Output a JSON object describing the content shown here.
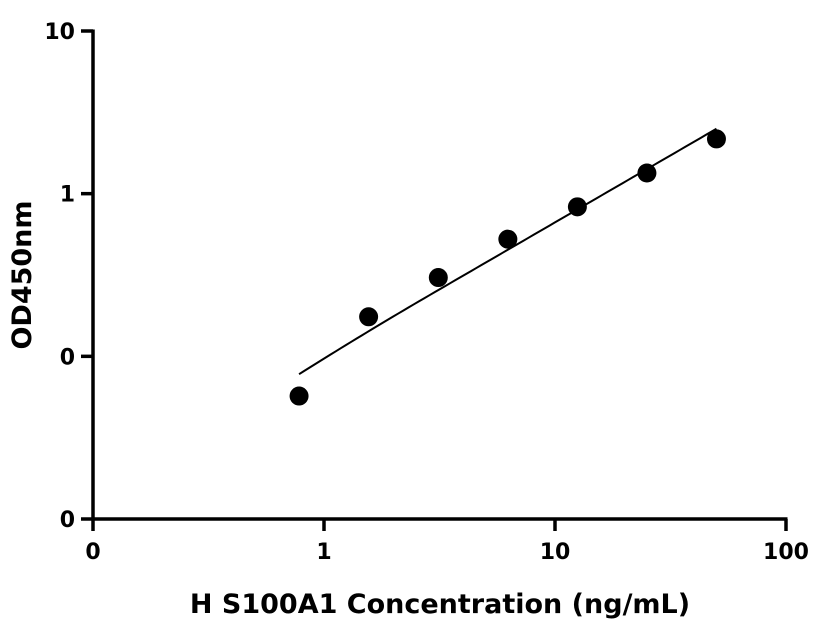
{
  "chart_data": {
    "type": "scatter",
    "title": "",
    "xlabel": "H S100A1 Concentration (ng/mL)",
    "ylabel": "OD450nm",
    "x_scale": "log",
    "y_scale": "log",
    "xlim": [
      0.1,
      100
    ],
    "ylim": [
      0.01,
      10
    ],
    "x_ticks": [
      {
        "value": 0.1,
        "label": "0"
      },
      {
        "value": 1,
        "label": "1"
      },
      {
        "value": 10,
        "label": "10"
      },
      {
        "value": 100,
        "label": "100"
      }
    ],
    "y_ticks": [
      {
        "value": 0.01,
        "label": "0"
      },
      {
        "value": 0.1,
        "label": "0"
      },
      {
        "value": 1,
        "label": "1"
      },
      {
        "value": 10,
        "label": "10"
      }
    ],
    "grid": false,
    "legend": "none",
    "series": [
      {
        "x": [
          0.78,
          1.56,
          3.125,
          6.25,
          12.5,
          25,
          50
        ],
        "y": [
          0.057,
          0.175,
          0.305,
          0.525,
          0.83,
          1.34,
          2.17
        ],
        "fit": "power-curve",
        "marker_color": "#000000",
        "line_color": "#000000"
      }
    ]
  }
}
